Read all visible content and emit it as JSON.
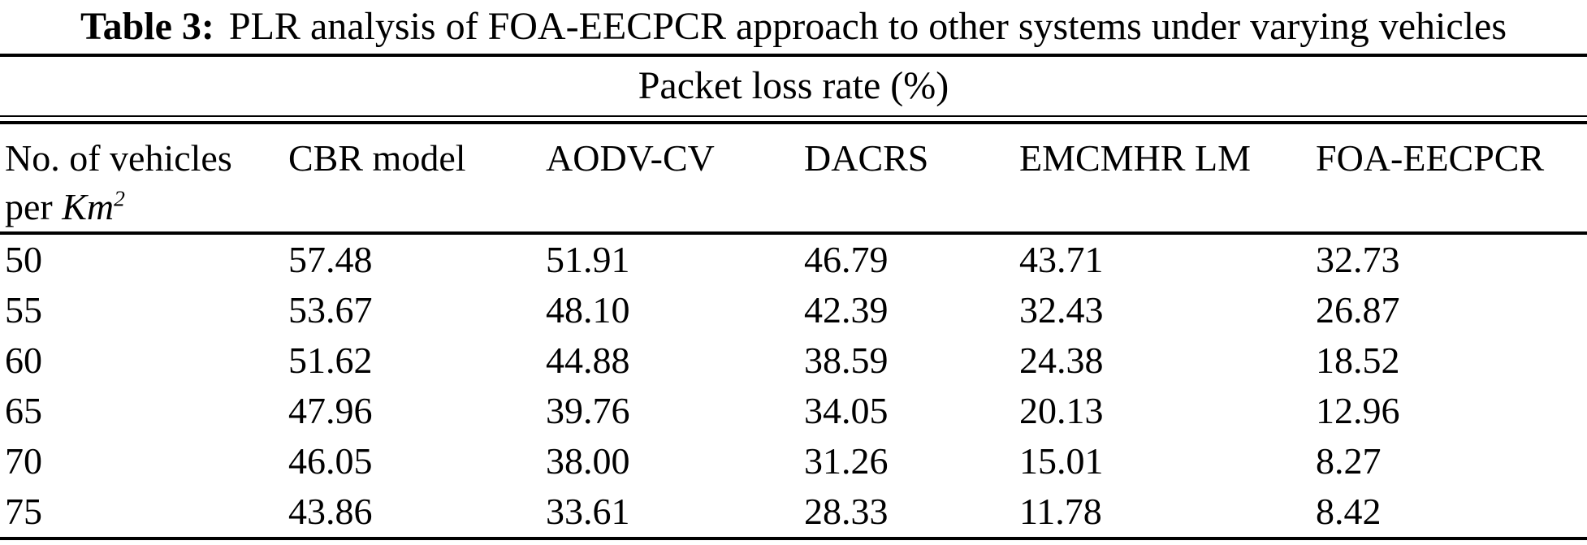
{
  "colors": {
    "background": "#ffffff",
    "text": "#000000",
    "rule": "#000000"
  },
  "caption": {
    "label": "Table 3:",
    "text": "PLR analysis of FOA-EECPCR approach to other systems under varying vehicles"
  },
  "table": {
    "spanning_header": "Packet loss rate (%)",
    "headers": {
      "vehicles_line1": "No. of vehicles",
      "vehicles_line2_prefix": "per ",
      "vehicles_line2_unit": "Km",
      "vehicles_line2_sup": "2",
      "cbr": "CBR model",
      "aodv": "AODV-CV",
      "dacrs": "DACRS",
      "emcmhr": "EMCMHR LM",
      "foa": "FOA-EECPCR"
    },
    "rows": [
      {
        "vehicles": "50",
        "cbr": "57.48",
        "aodv": "51.91",
        "dacrs": "46.79",
        "emcmhr": "43.71",
        "foa": "32.73"
      },
      {
        "vehicles": "55",
        "cbr": "53.67",
        "aodv": "48.10",
        "dacrs": "42.39",
        "emcmhr": "32.43",
        "foa": "26.87"
      },
      {
        "vehicles": "60",
        "cbr": "51.62",
        "aodv": "44.88",
        "dacrs": "38.59",
        "emcmhr": "24.38",
        "foa": "18.52"
      },
      {
        "vehicles": "65",
        "cbr": "47.96",
        "aodv": "39.76",
        "dacrs": "34.05",
        "emcmhr": "20.13",
        "foa": "12.96"
      },
      {
        "vehicles": "70",
        "cbr": "46.05",
        "aodv": "38.00",
        "dacrs": "31.26",
        "emcmhr": "15.01",
        "foa": "8.27"
      },
      {
        "vehicles": "75",
        "cbr": "43.86",
        "aodv": "33.61",
        "dacrs": "28.33",
        "emcmhr": "11.78",
        "foa": "8.42"
      }
    ]
  }
}
